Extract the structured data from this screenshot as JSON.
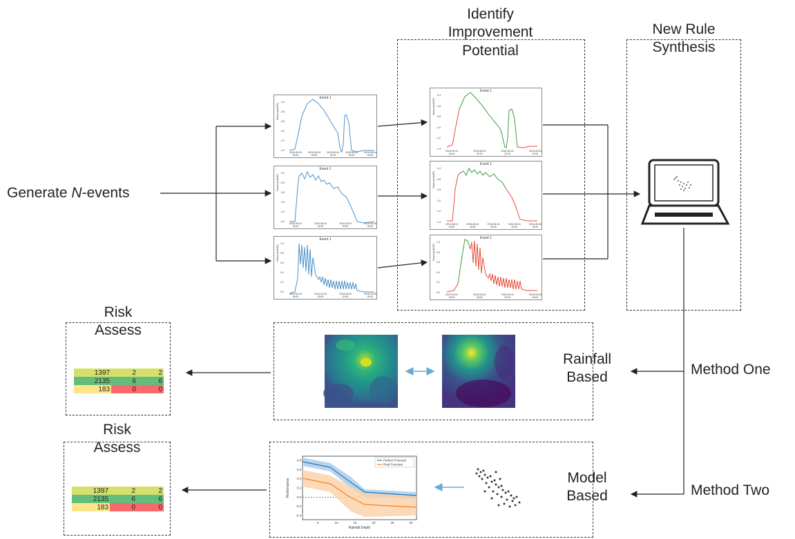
{
  "labels": {
    "generate_prefix": "Generate ",
    "generate_n": "N",
    "generate_suffix": "-events",
    "identify_line1": "Identify",
    "identify_line2": "Improvement",
    "identify_line3": "Potential",
    "synthesis_line1": "New Rule",
    "synthesis_line2": "Synthesis",
    "rainfall_line1": "Rainfall",
    "rainfall_line2": "Based",
    "model_line1": "Model",
    "model_line2": "Based",
    "method_one": "Method One",
    "method_two": "Method Two",
    "risk_line1": "Risk",
    "risk_line2": "Assess"
  },
  "event_plots": {
    "title": "Event 1",
    "ylabel": "Head (mAHP)",
    "left": [
      {
        "yticks": [
          "-3.4",
          "-3.6",
          "-3.8",
          "-4.0",
          "-4.2",
          "-4.4"
        ],
        "xticks": [
          "2015-06-04\n16:00",
          "2015-06-04\n18:00",
          "2015-06-04\n20:00",
          "2015-06-04\n22:00",
          "2015-06-04\n00:00"
        ]
      },
      {
        "yticks": [
          "-3.4",
          "-3.6",
          "-3.8",
          "-4.0",
          "-4.2",
          "-4.4"
        ],
        "xticks": [
          "2015-06-04\n16:00",
          "2015-06-04\n18:00",
          "2015-06-04\n20:00",
          "2015-06-05\n00:00"
        ]
      },
      {
        "yticks": [
          "1.0",
          "0.8",
          "0.6",
          "0.4",
          "0.2",
          "0.0"
        ],
        "xticks": [
          "2015-04-04\n16:00",
          "2015-04-04\n18:00",
          "2015-04-04\n22:00",
          "2015-04-05\n00:00"
        ]
      }
    ],
    "right": [
      {
        "yticks": [
          "-3.4",
          "-3.6",
          "-3.8",
          "-4.0",
          "-4.2",
          "-4.4"
        ],
        "xticks": [
          "2015-06-04\n16:00",
          "2015-06-04\n22:00",
          "2015-06-04\n22:00",
          "2015-06-04\n22:00"
        ]
      },
      {
        "yticks": [
          "-3.4",
          "-3.6",
          "-3.8",
          "-4.0",
          "-4.2",
          "-4.4"
        ],
        "xticks": [
          "2015-06-04\n16:00",
          "2015-06-04\n18:00",
          "2015-06-04\n20:00",
          "2015-06-04\n22:00",
          "2015-06-05\n00:00"
        ]
      },
      {
        "yticks": [
          "1.0",
          "0.8",
          "0.6",
          "0.4",
          "0.2",
          "0.0"
        ],
        "xticks": [
          "2015-04-04\n16:00",
          "2015-04-04\n18:00",
          "2015-04-04\n22:00",
          "2015-04-05\n00:00"
        ]
      }
    ]
  },
  "risk_table": {
    "rows": [
      {
        "cells": [
          "1397",
          "2",
          "2"
        ],
        "colors": [
          "#d4df6c",
          "#d4df6c",
          "#d4df6c"
        ]
      },
      {
        "cells": [
          "2135",
          "6",
          "6"
        ],
        "colors": [
          "#63be7b",
          "#63be7b",
          "#63be7b"
        ]
      },
      {
        "cells": [
          "183",
          "0",
          "0"
        ],
        "colors": [
          "#fde58a",
          "#f8696b",
          "#f8696b"
        ]
      }
    ]
  },
  "perf_chart": {
    "legend": [
      "Perfect Forecast",
      "Real Forecast"
    ],
    "xlabel": "Rainfall Depth",
    "ylabel": "Performance",
    "yticks": [
      "0.8",
      "0.6",
      "0.4",
      "0.2",
      "0.0",
      "-0.2",
      "-0.4"
    ],
    "xticks": [
      "5",
      "10",
      "15",
      "20",
      "25",
      "30"
    ],
    "colors": {
      "perfect": "#1f77b4",
      "real": "#ff7f0e"
    }
  },
  "colors": {
    "blue_line": "#4a90c8",
    "red_line": "#e84a3a",
    "green_line": "#3a9a3a",
    "dashed_border": "#333333",
    "arrow": "#222222",
    "double_arrow": "#6aaad6"
  }
}
